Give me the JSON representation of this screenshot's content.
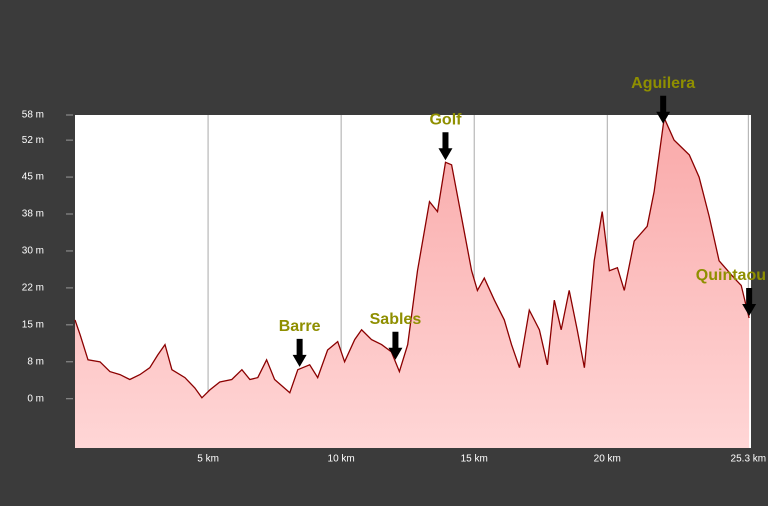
{
  "chart_data": {
    "type": "area",
    "x": [
      0,
      0.19,
      0.49,
      0.94,
      1.31,
      1.69,
      2.06,
      2.44,
      2.81,
      3.11,
      3.38,
      3.64,
      4.13,
      4.5,
      4.77,
      5.07,
      5.44,
      5.89,
      6.27,
      6.57,
      6.87,
      7.2,
      7.5,
      8.07,
      8.37,
      8.82,
      9.12,
      9.49,
      9.87,
      10.13,
      10.51,
      10.77,
      11.14,
      11.52,
      11.89,
      12.19,
      12.5,
      12.87,
      13.32,
      13.62,
      13.92,
      14.15,
      14.52,
      14.9,
      15.12,
      15.38,
      15.76,
      16.13,
      16.4,
      16.7,
      17.07,
      17.45,
      17.75,
      18.01,
      18.27,
      18.57,
      18.87,
      19.14,
      19.51,
      19.81,
      20.08,
      20.38,
      20.64,
      21.01,
      21.5,
      21.76,
      22.14,
      22.51,
      23.08,
      23.45,
      23.83,
      24.2,
      24.77,
      25.03,
      25.33
    ],
    "values": [
      16,
      13,
      7.9,
      7.5,
      5.5,
      4.9,
      3.9,
      4.9,
      6.3,
      8.9,
      11,
      5.9,
      4.3,
      2.2,
      0.2,
      1.8,
      3.4,
      3.9,
      5.9,
      3.9,
      4.3,
      7.9,
      3.9,
      1.2,
      5.9,
      6.9,
      4.3,
      9.9,
      11.6,
      7.5,
      12,
      14,
      12,
      11,
      9.5,
      5.5,
      11,
      26,
      40,
      38,
      48,
      47.5,
      37,
      26,
      22,
      24.5,
      20,
      16,
      11,
      6.3,
      18,
      14,
      6.9,
      20,
      14,
      22,
      14,
      6.3,
      28,
      38,
      26,
      26.6,
      22,
      32,
      35,
      42,
      57,
      52.5,
      49.5,
      45,
      37,
      28,
      24.5,
      23,
      16.4
    ],
    "color": "#8b0000",
    "fill": "#f7b8b8",
    "xlim": [
      0,
      25.4
    ],
    "ylim": [
      -10,
      57.6
    ],
    "xticks": [
      {
        "value": 5,
        "label": "5 km"
      },
      {
        "value": 10,
        "label": "10 km"
      },
      {
        "value": 15,
        "label": "15 km"
      },
      {
        "value": 20,
        "label": "20 km"
      },
      {
        "value": 25.3,
        "label": "25.3 km"
      }
    ],
    "yticks": [
      {
        "value": 0,
        "label": "0 m"
      },
      {
        "value": 7.5,
        "label": "8 m"
      },
      {
        "value": 15,
        "label": "15 m"
      },
      {
        "value": 22.5,
        "label": "22 m"
      },
      {
        "value": 30,
        "label": "30 m"
      },
      {
        "value": 37.5,
        "label": "38 m"
      },
      {
        "value": 45,
        "label": "45 m"
      },
      {
        "value": 52.5,
        "label": "52 m"
      },
      {
        "value": 57.6,
        "label": "58 m"
      }
    ],
    "grid": true,
    "annotations": [
      {
        "label": "Barre",
        "x": 8.44
      },
      {
        "label": "Sables",
        "x": 12.04
      },
      {
        "label": "Golf",
        "x": 13.92
      },
      {
        "label": "Aguilera",
        "x": 22.1
      },
      {
        "label": "Quintaou",
        "x": 25.33
      }
    ]
  }
}
